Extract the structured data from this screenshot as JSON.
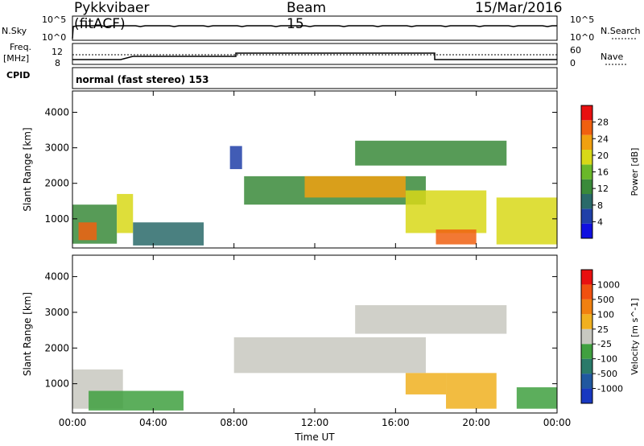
{
  "header": {
    "station": "Pykkvibaer (fitACF)",
    "beam": "Beam 15",
    "date": "15/Mar/2016"
  },
  "strip1": {
    "left_label": "N.Sky",
    "right_label": "N.Search",
    "left_ticks": [
      "10^5",
      "10^0"
    ],
    "right_ticks": [
      "10^5",
      "10^0"
    ]
  },
  "strip2": {
    "left_label_1": "Freq.",
    "left_label_2": "[MHz]",
    "left_ticks": [
      "12",
      "8"
    ],
    "right_ticks": [
      "60",
      "0"
    ],
    "right_label": "Nave",
    "cpid_label": "CPID"
  },
  "strip3": {
    "text": "normal (fast stereo) 153"
  },
  "axes": {
    "ylabel": "Slant Range [km]",
    "xlabel": "Time UT",
    "y_ticks": [
      "1000",
      "2000",
      "3000",
      "4000"
    ],
    "x_ticks": [
      "00:00",
      "04:00",
      "08:00",
      "12:00",
      "16:00",
      "20:00",
      "00:00"
    ]
  },
  "power_colorbar": {
    "label": "Power [dB]",
    "ticks": [
      "4",
      "8",
      "12",
      "16",
      "20",
      "24",
      "28"
    ],
    "colors": [
      "#1010e0",
      "#2040a8",
      "#2a6a6a",
      "#3a8a3a",
      "#6ab82a",
      "#d8d818",
      "#f0a010",
      "#f06010",
      "#e81010"
    ]
  },
  "velocity_colorbar": {
    "label": "Velocity [m s^-1]",
    "ticks": [
      "1000",
      "500",
      "100",
      "25",
      "-25",
      "-100",
      "-500",
      "-1000"
    ],
    "colors": [
      "#1838c0",
      "#2058a0",
      "#2a7a6a",
      "#40a040",
      "#c8c8c0",
      "#f0b020",
      "#f08010",
      "#f05010",
      "#e81010"
    ]
  },
  "chart_data": [
    {
      "type": "heatmap",
      "title": "Power",
      "xlabel": "Time UT",
      "ylabel": "Slant Range [km]",
      "xlim": [
        "00:00",
        "24:00"
      ],
      "ylim": [
        180,
        4600
      ],
      "colorbar_label": "Power [dB]",
      "colorbar_range": [
        0,
        32
      ],
      "regions": [
        {
          "t0": 0.0,
          "t1": 2.2,
          "r0": 300,
          "r1": 1400,
          "value": 14
        },
        {
          "t0": 0.3,
          "t1": 1.2,
          "r0": 400,
          "r1": 900,
          "value": 26
        },
        {
          "t0": 2.2,
          "t1": 3.0,
          "r0": 600,
          "r1": 1700,
          "value": 18
        },
        {
          "t0": 3.0,
          "t1": 6.5,
          "r0": 250,
          "r1": 900,
          "value": 10
        },
        {
          "t0": 7.8,
          "t1": 8.4,
          "r0": 2400,
          "r1": 3050,
          "value": 6
        },
        {
          "t0": 8.5,
          "t1": 17.5,
          "r0": 1400,
          "r1": 2200,
          "value": 12
        },
        {
          "t0": 11.5,
          "t1": 16.5,
          "r0": 1600,
          "r1": 2200,
          "value": 24
        },
        {
          "t0": 14.0,
          "t1": 21.5,
          "r0": 2500,
          "r1": 3200,
          "value": 12
        },
        {
          "t0": 16.5,
          "t1": 20.5,
          "r0": 600,
          "r1": 1800,
          "value": 20
        },
        {
          "t0": 18.0,
          "t1": 20.0,
          "r0": 280,
          "r1": 700,
          "value": 28
        },
        {
          "t0": 21.0,
          "t1": 24.0,
          "r0": 280,
          "r1": 1600,
          "value": 20
        }
      ]
    },
    {
      "type": "heatmap",
      "title": "Velocity",
      "xlabel": "Time UT",
      "ylabel": "Slant Range [km]",
      "xlim": [
        "00:00",
        "24:00"
      ],
      "ylim": [
        180,
        4600
      ],
      "colorbar_label": "Velocity [m s^-1]",
      "colorbar_range": [
        -1000,
        1000
      ],
      "regions": [
        {
          "t0": 0.0,
          "t1": 2.5,
          "r0": 300,
          "r1": 1400,
          "value": 40
        },
        {
          "t0": 0.8,
          "t1": 5.5,
          "r0": 250,
          "r1": 800,
          "value": -120
        },
        {
          "t0": 8.0,
          "t1": 17.5,
          "r0": 1300,
          "r1": 2300,
          "value": 0
        },
        {
          "t0": 14.0,
          "t1": 21.5,
          "r0": 2400,
          "r1": 3200,
          "value": -10
        },
        {
          "t0": 16.5,
          "t1": 18.5,
          "r0": 700,
          "r1": 1300,
          "value": 300
        },
        {
          "t0": 18.5,
          "t1": 21.0,
          "r0": 300,
          "r1": 1300,
          "value": 200
        },
        {
          "t0": 22.0,
          "t1": 24.0,
          "r0": 300,
          "r1": 900,
          "value": -300
        }
      ]
    }
  ]
}
